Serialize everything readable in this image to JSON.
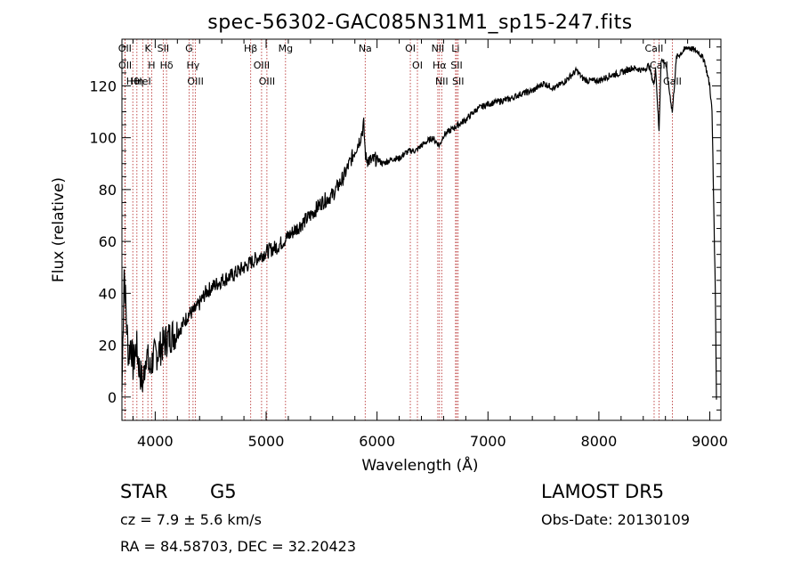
{
  "chart_data": {
    "type": "line",
    "title": "spec-56302-GAC085N31M1_sp15-247.fits",
    "xlabel": "Wavelength (Å)",
    "ylabel": "Flux (relative)",
    "xlim": [
      3700,
      9100
    ],
    "ylim": [
      -9,
      138
    ],
    "x_ticks": [
      4000,
      5000,
      6000,
      7000,
      8000,
      9000
    ],
    "y_ticks": [
      0,
      20,
      40,
      60,
      80,
      100,
      120
    ],
    "grid": false,
    "series": [
      {
        "x": [
          3700,
          3720,
          3740,
          3760,
          3780,
          3800,
          3830,
          3860,
          3890,
          3920,
          3950,
          3980,
          4000,
          4050,
          4100,
          4150,
          4200,
          4250,
          4300,
          4350,
          4400,
          4450,
          4500,
          4600,
          4700,
          4800,
          4900,
          5000,
          5100,
          5200,
          5300,
          5400,
          5500,
          5600,
          5700,
          5780,
          5850,
          5880,
          5893,
          5900,
          5950,
          6000,
          6050,
          6100,
          6150,
          6200,
          6250,
          6300,
          6350,
          6400,
          6500,
          6563,
          6600,
          6700,
          6800,
          6900,
          7000,
          7100,
          7200,
          7300,
          7400,
          7500,
          7600,
          7700,
          7800,
          7850,
          7900,
          8000,
          8100,
          8200,
          8300,
          8400,
          8450,
          8498,
          8510,
          8542,
          8560,
          8600,
          8662,
          8700,
          8750,
          8800,
          8850,
          8900,
          8950,
          9000,
          9020,
          9050,
          9060
        ],
        "y": [
          2,
          50,
          30,
          15,
          22,
          12,
          20,
          10,
          5,
          18,
          10,
          15,
          16,
          19,
          22,
          24,
          25,
          28,
          32,
          33,
          36,
          40,
          42,
          45,
          47,
          50,
          53,
          56,
          58,
          62,
          66,
          70,
          75,
          78,
          85,
          93,
          100,
          105,
          95,
          92,
          91,
          92,
          90,
          91,
          92,
          92,
          94,
          95,
          95,
          97,
          100,
          97,
          101,
          104,
          107,
          111,
          113,
          114,
          115,
          117,
          118,
          121,
          119,
          122,
          126,
          123,
          122,
          122,
          124,
          125,
          127,
          126,
          128,
          120,
          128,
          102,
          130,
          129,
          110,
          131,
          133,
          135,
          134,
          133,
          130,
          120,
          110,
          40,
          -1
        ]
      }
    ],
    "spectral_lines": [
      {
        "label": "Hθ",
        "x": 3798
      },
      {
        "label": "OII",
        "x": 3727
      },
      {
        "label": "OII",
        "x": 3729
      },
      {
        "label": "Hη",
        "x": 3835
      },
      {
        "label": "HeI",
        "x": 3889
      },
      {
        "label": "K",
        "x": 3934
      },
      {
        "label": "H",
        "x": 3968
      },
      {
        "label": "SII",
        "x": 4072
      },
      {
        "label": "Hδ",
        "x": 4102
      },
      {
        "label": "Hγ",
        "x": 4341
      },
      {
        "label": "G",
        "x": 4305
      },
      {
        "label": "OIII",
        "x": 4363
      },
      {
        "label": "Hβ",
        "x": 4861
      },
      {
        "label": "OIII",
        "x": 4959
      },
      {
        "label": "OIII",
        "x": 5007
      },
      {
        "label": "Mg",
        "x": 5175
      },
      {
        "label": "Na",
        "x": 5893
      },
      {
        "label": "OI",
        "x": 6300
      },
      {
        "label": "OI",
        "x": 6364
      },
      {
        "label": "NII",
        "x": 6548
      },
      {
        "label": "Hα",
        "x": 6563
      },
      {
        "label": "NII",
        "x": 6583
      },
      {
        "label": "Li",
        "x": 6708
      },
      {
        "label": "SII",
        "x": 6717
      },
      {
        "label": "SII",
        "x": 6731
      },
      {
        "label": "CaII",
        "x": 8498
      },
      {
        "label": "CaII",
        "x": 8542
      },
      {
        "label": "CaII",
        "x": 8662
      }
    ]
  },
  "footer": {
    "class_label": "STAR",
    "subclass_label": "G5",
    "survey": "LAMOST  DR5",
    "redshift": "cz = 7.9 ± 5.6 km/s",
    "obs_date": "Obs-Date: 20130109",
    "coords": "RA =  84.58703, DEC =  32.20423"
  }
}
